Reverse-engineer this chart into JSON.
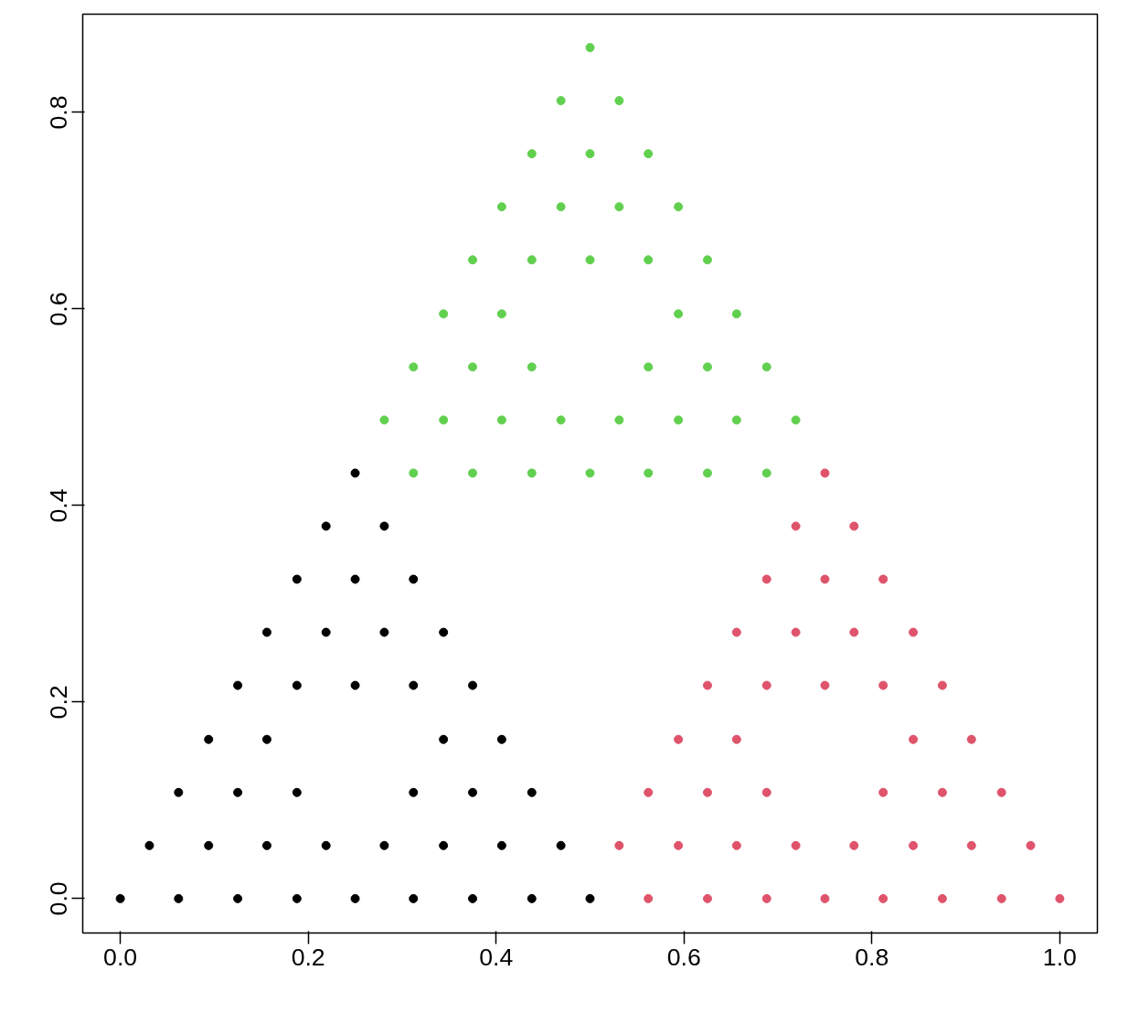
{
  "chart_data": {
    "type": "scatter",
    "marker": "circle",
    "grid": false,
    "xlim": [
      -0.04,
      1.04
    ],
    "ylim": [
      -0.035,
      0.9
    ],
    "xticks": [
      {
        "value": 0,
        "label": "0.0"
      },
      {
        "value": 0.2,
        "label": "0.2"
      },
      {
        "value": 0.4,
        "label": "0.4"
      },
      {
        "value": 0.6,
        "label": "0.6"
      },
      {
        "value": 0.8,
        "label": "0.8"
      },
      {
        "value": 1,
        "label": "1.0"
      }
    ],
    "yticks": [
      {
        "value": 0,
        "label": "0.0"
      },
      {
        "value": 0.2,
        "label": "0.2"
      },
      {
        "value": 0.4,
        "label": "0.4"
      },
      {
        "value": 0.6,
        "label": "0.6"
      },
      {
        "value": 0.8,
        "label": "0.8"
      }
    ],
    "series": [
      {
        "color": "#000000",
        "x": [
          0,
          0.062,
          0.125,
          0.188,
          0.25,
          0.312,
          0.375,
          0.438,
          0.5,
          0.031,
          0.094,
          0.156,
          0.219,
          0.281,
          0.344,
          0.406,
          0.469,
          0.062,
          0.125,
          0.188,
          0.312,
          0.375,
          0.438,
          0.094,
          0.156,
          0.344,
          0.406,
          0.125,
          0.188,
          0.25,
          0.312,
          0.375,
          0.156,
          0.219,
          0.281,
          0.344,
          0.188,
          0.25,
          0.312,
          0.219,
          0.281,
          0.25
        ],
        "values": [
          0,
          0,
          0,
          0,
          0,
          0,
          0,
          0,
          0,
          0.054,
          0.054,
          0.054,
          0.054,
          0.054,
          0.054,
          0.054,
          0.054,
          0.108,
          0.108,
          0.108,
          0.108,
          0.108,
          0.108,
          0.162,
          0.162,
          0.162,
          0.162,
          0.217,
          0.217,
          0.217,
          0.217,
          0.217,
          0.271,
          0.271,
          0.271,
          0.271,
          0.325,
          0.325,
          0.325,
          0.379,
          0.379,
          0.433
        ]
      },
      {
        "color": "#df536b",
        "x": [
          0.562,
          0.625,
          0.688,
          0.75,
          0.812,
          0.875,
          0.938,
          1.0,
          0.531,
          0.594,
          0.656,
          0.719,
          0.781,
          0.844,
          0.906,
          0.969,
          0.562,
          0.625,
          0.688,
          0.812,
          0.875,
          0.938,
          0.594,
          0.656,
          0.844,
          0.906,
          0.625,
          0.688,
          0.75,
          0.812,
          0.875,
          0.656,
          0.719,
          0.781,
          0.844,
          0.688,
          0.75,
          0.812,
          0.719,
          0.781,
          0.75
        ],
        "values": [
          0,
          0,
          0,
          0,
          0,
          0,
          0,
          0,
          0.054,
          0.054,
          0.054,
          0.054,
          0.054,
          0.054,
          0.054,
          0.054,
          0.108,
          0.108,
          0.108,
          0.108,
          0.108,
          0.108,
          0.162,
          0.162,
          0.162,
          0.162,
          0.217,
          0.217,
          0.217,
          0.217,
          0.217,
          0.271,
          0.271,
          0.271,
          0.271,
          0.325,
          0.325,
          0.325,
          0.379,
          0.379,
          0.433
        ]
      },
      {
        "color": "#61d04f",
        "x": [
          0.312,
          0.375,
          0.438,
          0.5,
          0.562,
          0.625,
          0.688,
          0.281,
          0.344,
          0.406,
          0.469,
          0.531,
          0.594,
          0.656,
          0.719,
          0.312,
          0.375,
          0.438,
          0.562,
          0.625,
          0.688,
          0.344,
          0.406,
          0.594,
          0.656,
          0.375,
          0.438,
          0.5,
          0.562,
          0.625,
          0.406,
          0.469,
          0.531,
          0.594,
          0.438,
          0.5,
          0.562,
          0.469,
          0.531,
          0.5
        ],
        "values": [
          0.433,
          0.433,
          0.433,
          0.433,
          0.433,
          0.433,
          0.433,
          0.487,
          0.487,
          0.487,
          0.487,
          0.487,
          0.487,
          0.487,
          0.487,
          0.541,
          0.541,
          0.541,
          0.541,
          0.541,
          0.541,
          0.595,
          0.595,
          0.595,
          0.595,
          0.65,
          0.65,
          0.65,
          0.65,
          0.65,
          0.704,
          0.704,
          0.704,
          0.704,
          0.758,
          0.758,
          0.758,
          0.812,
          0.812,
          0.866
        ]
      }
    ]
  }
}
